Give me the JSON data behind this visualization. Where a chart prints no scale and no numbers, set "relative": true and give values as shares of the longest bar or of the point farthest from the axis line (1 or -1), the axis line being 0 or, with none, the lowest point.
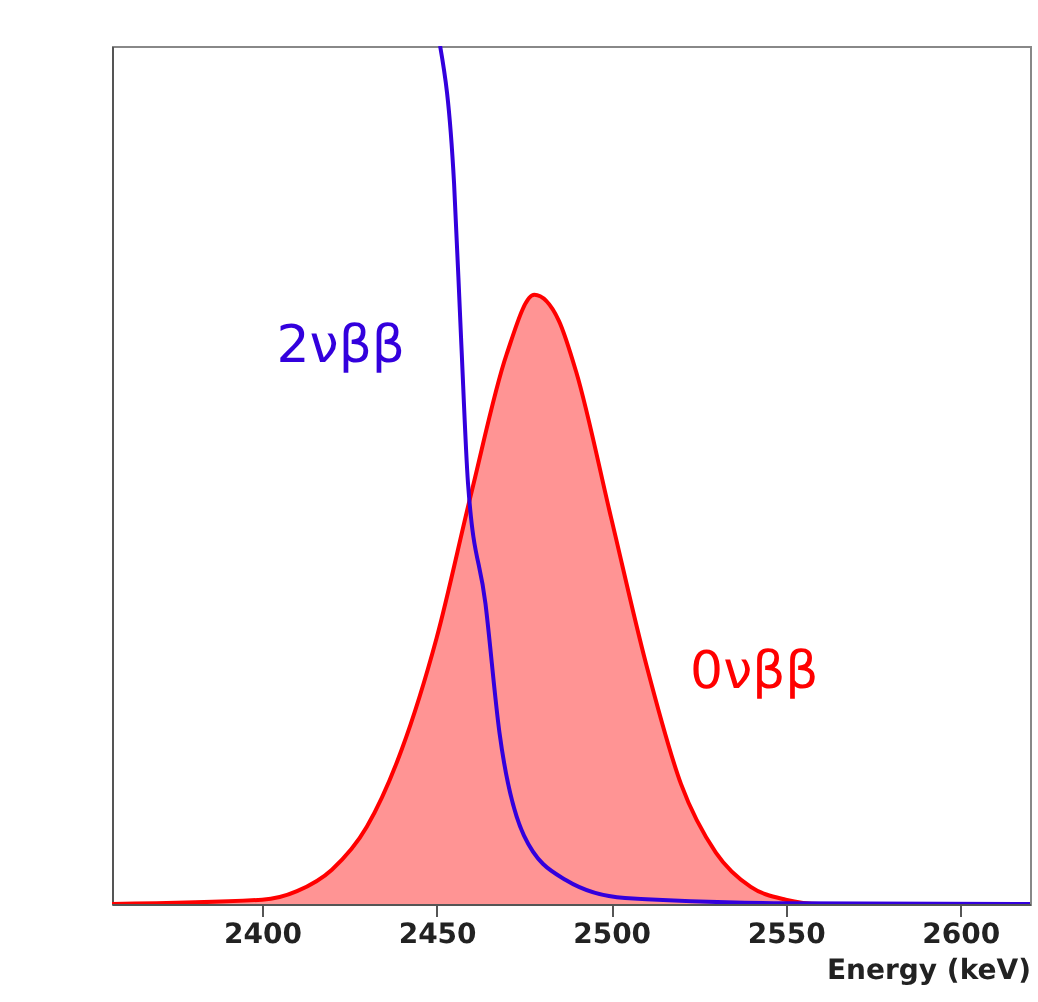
{
  "chart_data": {
    "type": "area",
    "xlabel": "Energy (keV)",
    "relative": true,
    "xlim": [
      2357,
      2620
    ],
    "xticks": [
      2400,
      2450,
      2500,
      2550,
      2600
    ],
    "grid": false,
    "legend": false,
    "series": [
      {
        "name": "0νββ",
        "color": "#ff0000",
        "x": [
          2357,
          2400,
          2410,
          2420,
          2430,
          2440,
          2450,
          2460,
          2470,
          2478,
          2485,
          2490,
          2500,
          2510,
          2520,
          2530,
          2540,
          2550,
          2560,
          2620
        ],
        "values": [
          0,
          0.005,
          0.015,
          0.04,
          0.09,
          0.18,
          0.31,
          0.48,
          0.64,
          0.71,
          0.68,
          0.62,
          0.45,
          0.28,
          0.14,
          0.06,
          0.02,
          0.005,
          0,
          0
        ]
      },
      {
        "name": "2νββ",
        "type": "line",
        "color": "#3300dd",
        "x": [
          2451,
          2455,
          2457,
          2459,
          2464,
          2468,
          2475,
          2487,
          2504,
          2550,
          2620
        ],
        "values": [
          1,
          0.84,
          0.66,
          0.49,
          0.35,
          0.2,
          0.08,
          0.028,
          0.007,
          0.001,
          0
        ]
      }
    ]
  }
}
